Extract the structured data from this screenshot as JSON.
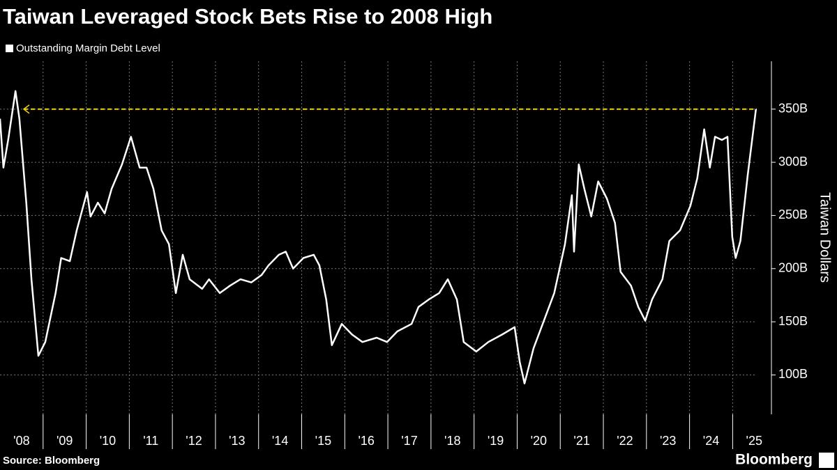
{
  "chart_data": {
    "type": "line",
    "title": "Taiwan Leveraged Stock Bets Rise to 2008 High",
    "y_axis_label": "Taiwan Dollars",
    "source": "Source: Bloomberg",
    "logo": "Bloomberg",
    "x": [
      2008.0,
      2008.08,
      2008.19,
      2008.36,
      2008.45,
      2008.61,
      2008.73,
      2008.89,
      2009.05,
      2009.29,
      2009.42,
      2009.62,
      2009.78,
      2010.02,
      2010.1,
      2010.27,
      2010.43,
      2010.59,
      2010.83,
      2011.04,
      2011.24,
      2011.4,
      2011.56,
      2011.75,
      2011.92,
      2012.08,
      2012.24,
      2012.4,
      2012.69,
      2012.85,
      2013.1,
      2013.34,
      2013.58,
      2013.83,
      2014.07,
      2014.23,
      2014.47,
      2014.63,
      2014.8,
      2015.04,
      2015.28,
      2015.41,
      2015.57,
      2015.7,
      2015.93,
      2016.17,
      2016.41,
      2016.74,
      2016.98,
      2017.22,
      2017.55,
      2017.71,
      2017.95,
      2018.19,
      2018.39,
      2018.6,
      2018.76,
      2019.05,
      2019.33,
      2019.65,
      2019.94,
      2020.06,
      2020.17,
      2020.38,
      2020.62,
      2020.86,
      2021.11,
      2021.27,
      2021.32,
      2021.43,
      2021.56,
      2021.72,
      2021.88,
      2022.08,
      2022.27,
      2022.4,
      2022.64,
      2022.81,
      2022.97,
      2023.13,
      2023.37,
      2023.53,
      2023.78,
      2024.02,
      2024.18,
      2024.34,
      2024.47,
      2024.59,
      2024.75,
      2024.88,
      2024.99,
      2025.07,
      2025.18,
      2025.35,
      2025.54
    ],
    "series": [
      {
        "name": "Outstanding Margin Debt Level",
        "color": "#ffffff",
        "values": [
          341,
          295,
          321,
          367,
          341,
          262,
          190,
          118,
          131,
          177,
          210,
          207,
          236,
          272,
          249,
          262,
          252,
          275,
          298,
          324,
          295,
          295,
          275,
          236,
          223,
          177,
          213,
          190,
          181,
          190,
          177,
          184,
          190,
          187,
          194,
          203,
          213,
          216,
          200,
          210,
          213,
          203,
          171,
          128,
          148,
          138,
          131,
          135,
          131,
          141,
          148,
          164,
          171,
          177,
          190,
          171,
          131,
          122,
          131,
          138,
          145,
          112,
          92,
          125,
          151,
          177,
          223,
          269,
          216,
          298,
          275,
          249,
          282,
          266,
          243,
          197,
          184,
          164,
          151,
          171,
          190,
          226,
          236,
          259,
          285,
          331,
          295,
          324,
          321,
          324,
          230,
          210,
          226,
          288,
          350
        ]
      }
    ],
    "xlim": [
      2008,
      2025.56
    ],
    "x_grid": [
      2009,
      2010,
      2011,
      2012,
      2013,
      2014,
      2015,
      2016,
      2017,
      2018,
      2019,
      2020,
      2021,
      2022,
      2023,
      2024,
      2025
    ],
    "xticks": [
      {
        "value": 2008.5,
        "label": "'08"
      },
      {
        "value": 2009.5,
        "label": "'09"
      },
      {
        "value": 2010.5,
        "label": "'10"
      },
      {
        "value": 2011.5,
        "label": "'11"
      },
      {
        "value": 2012.5,
        "label": "'12"
      },
      {
        "value": 2013.5,
        "label": "'13"
      },
      {
        "value": 2014.5,
        "label": "'14"
      },
      {
        "value": 2015.5,
        "label": "'15"
      },
      {
        "value": 2016.5,
        "label": "'16"
      },
      {
        "value": 2017.5,
        "label": "'17"
      },
      {
        "value": 2018.5,
        "label": "'18"
      },
      {
        "value": 2019.5,
        "label": "'19"
      },
      {
        "value": 2020.5,
        "label": "'20"
      },
      {
        "value": 2021.5,
        "label": "'21"
      },
      {
        "value": 2022.5,
        "label": "'22"
      },
      {
        "value": 2023.5,
        "label": "'23"
      },
      {
        "value": 2024.5,
        "label": "'24"
      },
      {
        "value": 2025.5,
        "label": "'25"
      }
    ],
    "ylim": [
      63,
      395
    ],
    "yticks": [
      {
        "value": 100,
        "label": "100B"
      },
      {
        "value": 150,
        "label": "150B"
      },
      {
        "value": 200,
        "label": "200B"
      },
      {
        "value": 250,
        "label": "250B"
      },
      {
        "value": 300,
        "label": "300B"
      },
      {
        "value": 350,
        "label": "350B"
      }
    ],
    "grid": true,
    "reference_line": {
      "value": 350,
      "color": "#f2d31b"
    }
  }
}
